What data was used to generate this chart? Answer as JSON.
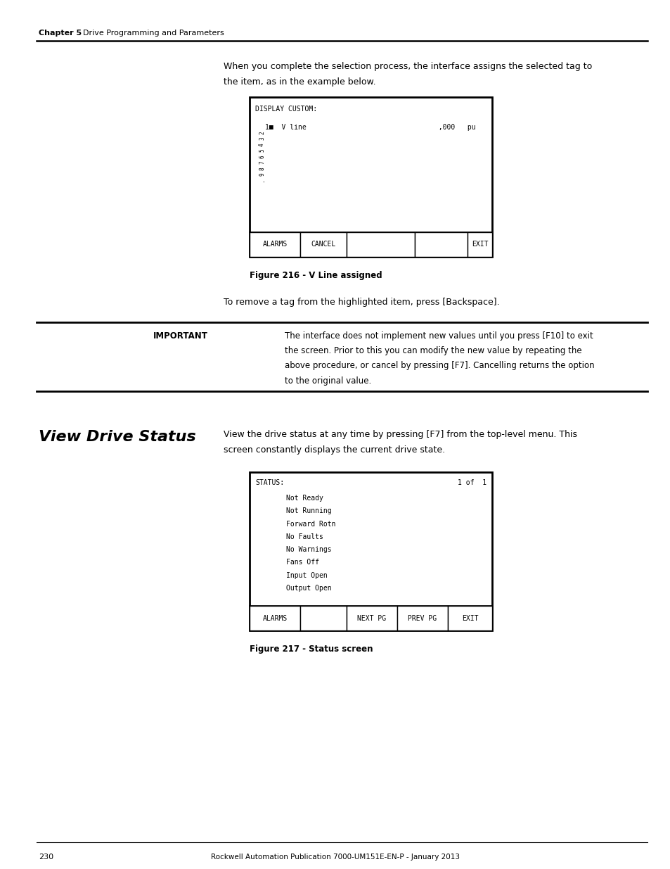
{
  "page_bg": "#ffffff",
  "page_width": 9.54,
  "page_height": 12.35,
  "header_chapter": "Chapter 5",
  "header_title": "Drive Programming and Parameters",
  "body_text1_line1": "When you complete the selection process, the interface assigns the selected tag to",
  "body_text1_line2": "the item, as in the example below.",
  "fig216_title": "DISPLAY CUSTOM:",
  "fig216_row1": "1■  V line                                ,000   pu",
  "fig216_sidebar": "2\n3\n4\n5\n6\n7\n8\n9\n.",
  "fig216_btn1": "ALARMS",
  "fig216_btn2": "CANCEL",
  "fig216_btn3": "EXIT",
  "fig216_caption": "Figure 216 - V Line assigned",
  "body_text2": "To remove a tag from the highlighted item, press [Backspace].",
  "important_label": "IMPORTANT",
  "important_text_line1": "The interface does not implement new values until you press [F10] to exit",
  "important_text_line2": "the screen. Prior to this you can modify the new value by repeating the",
  "important_text_line3": "above procedure, or cancel by pressing [F7]. Cancelling returns the option",
  "important_text_line4": "to the original value.",
  "section_title": "View Drive Status",
  "section_body_line1": "View the drive status at any time by pressing [F7] from the top-level menu. This",
  "section_body_line2": "screen constantly displays the current drive state.",
  "fig217_header": "STATUS:",
  "fig217_page": "1 of  1",
  "fig217_lines": [
    "Not Ready",
    "Not Running",
    "Forward Rotn",
    "No Faults",
    "No Warnings",
    "Fans Off",
    "Input Open",
    "Output Open"
  ],
  "fig217_btn1": "ALARMS",
  "fig217_btn2": "NEXT PG",
  "fig217_btn3": "PREV PG",
  "fig217_btn4": "EXIT",
  "fig217_caption": "Figure 217 - Status screen",
  "footer_page": "230",
  "footer_center": "Rockwell Automation Publication 7000-UM151E-EN-P - January 2013"
}
